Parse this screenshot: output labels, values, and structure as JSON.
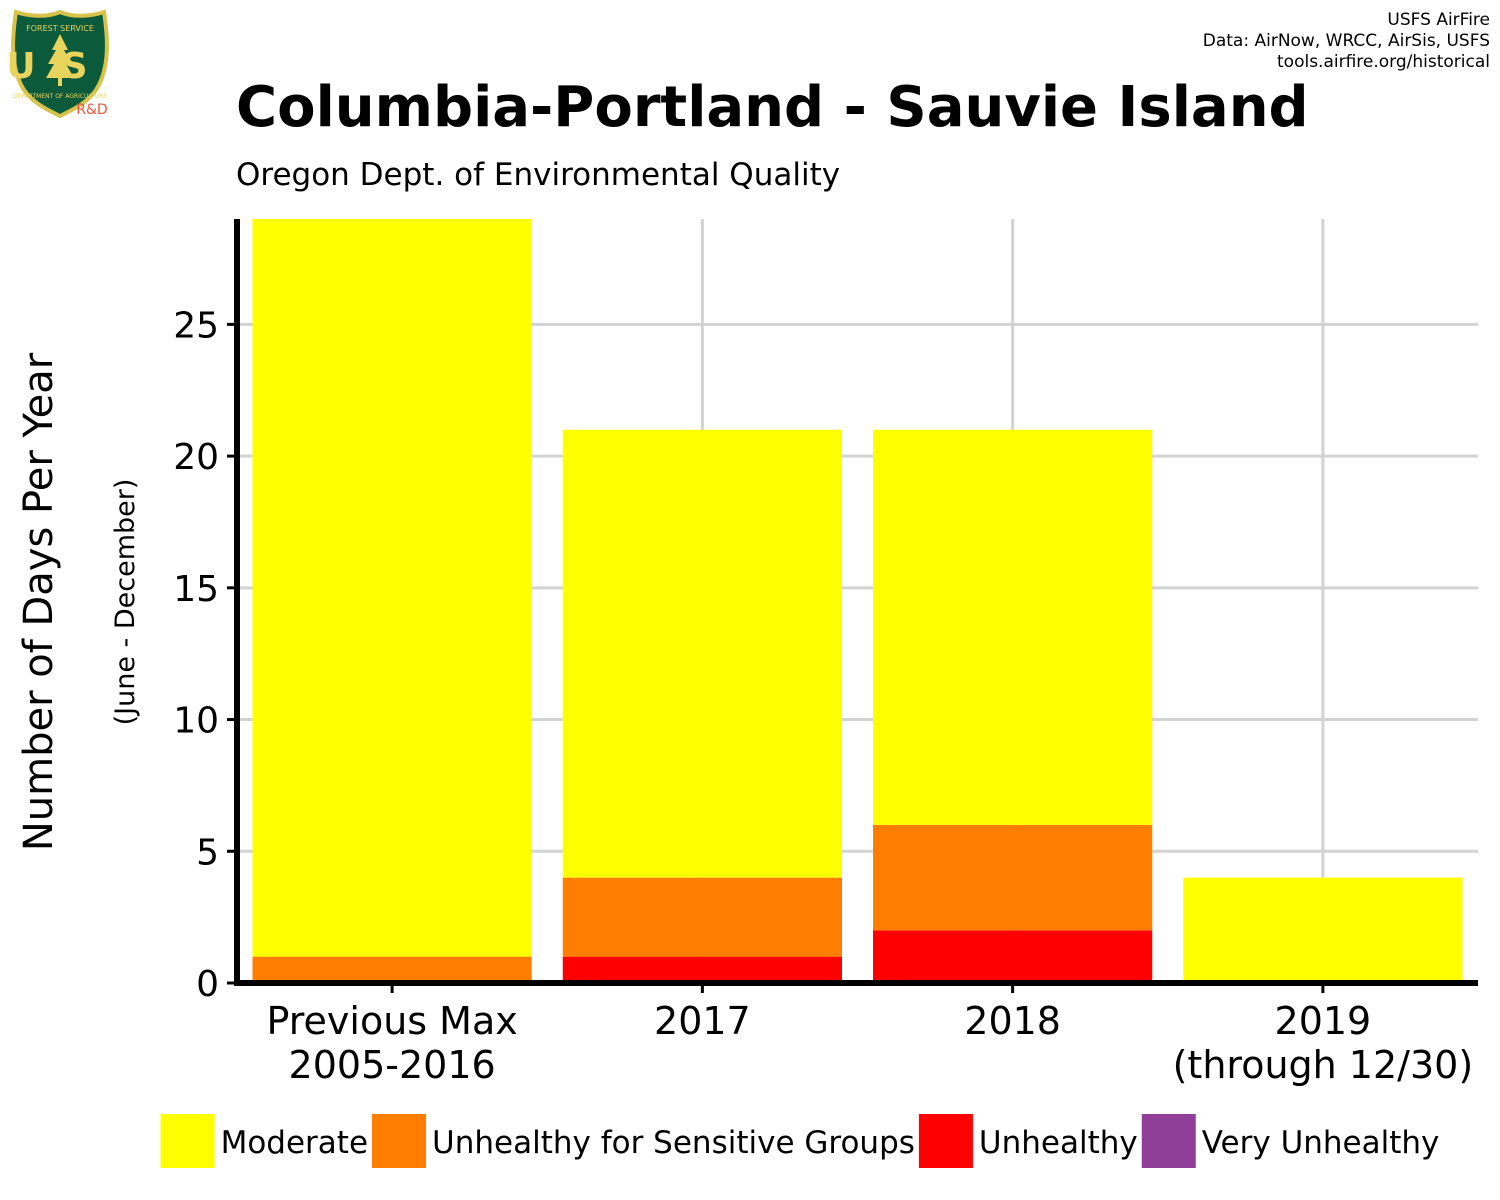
{
  "header": {
    "title": "Columbia-Portland - Sauvie Island",
    "subtitle": "Oregon Dept. of Environmental Quality",
    "credits": [
      "USFS AirFire",
      "Data: AirNow, WRCC, AirSis, USFS",
      "tools.airfire.org/historical"
    ]
  },
  "logo": {
    "text_top": "FOREST SERVICE",
    "text_letters": "US",
    "text_bottom": "DEPARTMENT OF AGRICULTURE",
    "text_rd": "R&D",
    "colors": {
      "shield": "#0b5a3b",
      "border": "#d7c24a",
      "letters": "#e8d35c",
      "rd": "#e8563c"
    }
  },
  "chart_data": {
    "type": "bar",
    "stacked": true,
    "title": "Columbia-Portland - Sauvie Island",
    "subtitle": "Oregon Dept. of Environmental Quality",
    "categories": [
      [
        "Previous Max",
        "2005-2016"
      ],
      [
        "2017"
      ],
      [
        "2018"
      ],
      [
        "2019",
        "(through 12/30)"
      ]
    ],
    "series": [
      {
        "name": "Unhealthy",
        "color": "#ff0000",
        "values": [
          0,
          1,
          2,
          0
        ]
      },
      {
        "name": "Unhealthy for Sensitive Groups",
        "color": "#ff7e00",
        "values": [
          1,
          3,
          4,
          0
        ]
      },
      {
        "name": "Moderate",
        "color": "#ffff00",
        "values": [
          28,
          17,
          15,
          4
        ]
      },
      {
        "name": "Very Unhealthy",
        "color": "#8f3f97",
        "values": [
          0,
          0,
          0,
          0
        ]
      }
    ],
    "legend_order": [
      "Moderate",
      "Unhealthy for Sensitive Groups",
      "Unhealthy",
      "Very Unhealthy"
    ],
    "legend_position": "bottom",
    "ylabel": "Number of Days Per Year",
    "ylabel_sub": "(June - December)",
    "xlabel": "",
    "yticks": [
      0,
      5,
      10,
      15,
      20,
      25
    ],
    "ylim": [
      0,
      29
    ],
    "grid": true,
    "grid_color": "#d3d3d3"
  }
}
